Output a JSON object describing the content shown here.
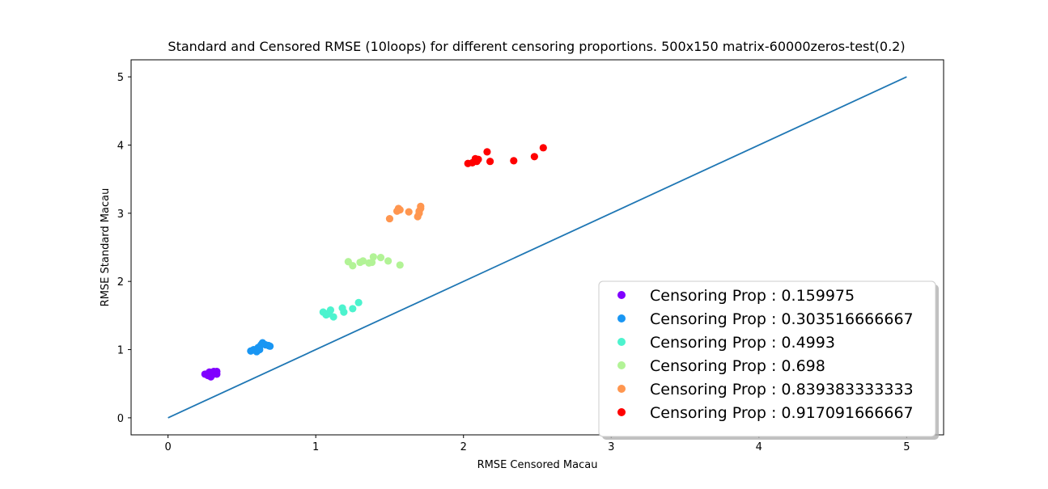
{
  "chart_data": {
    "type": "scatter",
    "title": "Standard and Censored RMSE (10loops) for different censoring proportions. 500x150 matrix-60000zeros-test(0.2)",
    "xlabel": "RMSE Censored Macau",
    "ylabel": "RMSE Standard Macau",
    "xlim": [
      -0.25,
      5.25
    ],
    "ylim": [
      -0.25,
      5.25
    ],
    "xticks": [
      0,
      1,
      2,
      3,
      4,
      5
    ],
    "yticks": [
      0,
      1,
      2,
      3,
      4,
      5
    ],
    "grid": false,
    "legend_position": "lower-right",
    "reference_line": {
      "x": [
        0,
        5
      ],
      "y": [
        0,
        5
      ],
      "color": "#1f77b4"
    },
    "series": [
      {
        "name": "Censoring Prop : 0.159975",
        "color": "#8000ff",
        "points": [
          [
            0.25,
            0.64
          ],
          [
            0.27,
            0.62
          ],
          [
            0.28,
            0.67
          ],
          [
            0.29,
            0.6
          ],
          [
            0.3,
            0.65
          ],
          [
            0.31,
            0.68
          ],
          [
            0.32,
            0.66
          ],
          [
            0.33,
            0.68
          ],
          [
            0.33,
            0.64
          ],
          [
            0.3,
            0.63
          ]
        ]
      },
      {
        "name": "Censoring Prop : 0.303516666667",
        "color": "#1996f3",
        "points": [
          [
            0.56,
            0.98
          ],
          [
            0.58,
            1.0
          ],
          [
            0.6,
            0.97
          ],
          [
            0.61,
            1.03
          ],
          [
            0.62,
            1.0
          ],
          [
            0.63,
            1.07
          ],
          [
            0.64,
            1.1
          ],
          [
            0.66,
            1.07
          ],
          [
            0.68,
            1.06
          ],
          [
            0.69,
            1.05
          ]
        ]
      },
      {
        "name": "Censoring Prop : 0.4993",
        "color": "#4df3ce",
        "points": [
          [
            1.05,
            1.55
          ],
          [
            1.07,
            1.51
          ],
          [
            1.09,
            1.54
          ],
          [
            1.1,
            1.58
          ],
          [
            1.12,
            1.48
          ],
          [
            1.18,
            1.61
          ],
          [
            1.19,
            1.55
          ],
          [
            1.25,
            1.6
          ],
          [
            1.29,
            1.69
          ],
          [
            1.08,
            1.52
          ]
        ]
      },
      {
        "name": "Censoring Prop : 0.698",
        "color": "#b2f396",
        "points": [
          [
            1.22,
            2.29
          ],
          [
            1.25,
            2.23
          ],
          [
            1.3,
            2.28
          ],
          [
            1.32,
            2.3
          ],
          [
            1.36,
            2.27
          ],
          [
            1.38,
            2.28
          ],
          [
            1.39,
            2.36
          ],
          [
            1.44,
            2.35
          ],
          [
            1.49,
            2.3
          ],
          [
            1.57,
            2.24
          ]
        ]
      },
      {
        "name": "Censoring Prop : 0.839383333333",
        "color": "#ff964f",
        "points": [
          [
            1.5,
            2.92
          ],
          [
            1.55,
            3.03
          ],
          [
            1.56,
            3.07
          ],
          [
            1.57,
            3.05
          ],
          [
            1.63,
            3.02
          ],
          [
            1.69,
            2.95
          ],
          [
            1.7,
            3.0
          ],
          [
            1.7,
            3.03
          ],
          [
            1.71,
            3.07
          ],
          [
            1.71,
            3.1
          ]
        ]
      },
      {
        "name": "Censoring Prop : 0.917091666667",
        "color": "#ff0000",
        "points": [
          [
            2.03,
            3.73
          ],
          [
            2.06,
            3.74
          ],
          [
            2.08,
            3.8
          ],
          [
            2.09,
            3.76
          ],
          [
            2.1,
            3.79
          ],
          [
            2.16,
            3.9
          ],
          [
            2.18,
            3.76
          ],
          [
            2.34,
            3.77
          ],
          [
            2.48,
            3.83
          ],
          [
            2.54,
            3.96
          ]
        ]
      }
    ]
  }
}
